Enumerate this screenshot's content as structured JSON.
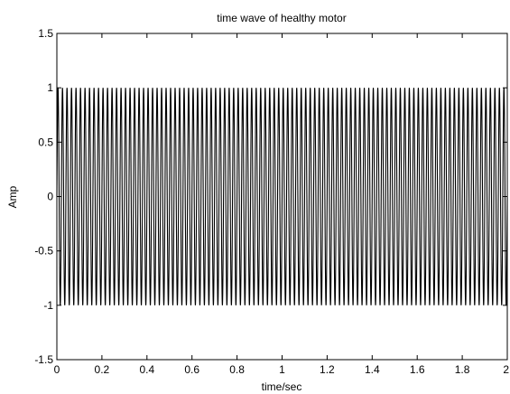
{
  "chart_data": {
    "type": "line",
    "title": "time wave of healthy motor",
    "xlabel": "time/sec",
    "ylabel": "Amp",
    "xlim": [
      0,
      2
    ],
    "ylim": [
      -1.5,
      1.5
    ],
    "x_ticks": [
      "0",
      "0.2",
      "0.4",
      "0.6",
      "0.8",
      "1",
      "1.2",
      "1.4",
      "1.6",
      "1.8",
      "2"
    ],
    "y_ticks": [
      "-1.5",
      "-1",
      "-0.5",
      "0",
      "0.5",
      "1",
      "1.5"
    ],
    "grid": false,
    "series": [
      {
        "color": "#000000",
        "function": "sin",
        "amplitude": 1,
        "frequency_hz": 50,
        "x_start": 0,
        "x_end": 2
      }
    ]
  }
}
